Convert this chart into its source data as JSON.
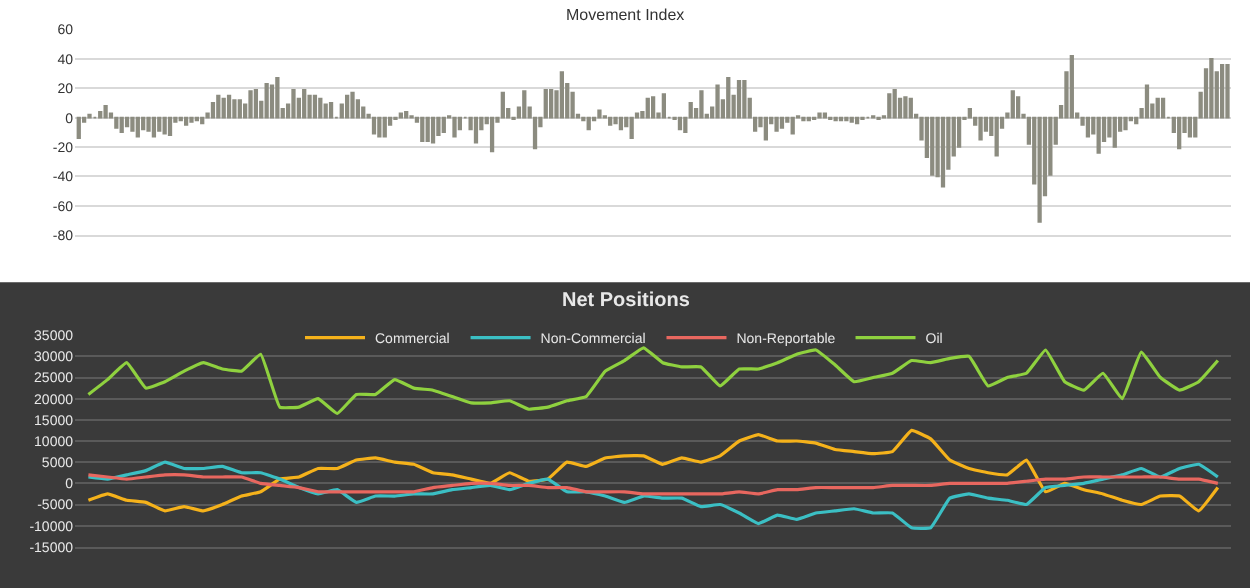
{
  "chart_data": [
    {
      "type": "bar",
      "title": "Movement Index",
      "categories": [
        null,
        null,
        null,
        null,
        null,
        null,
        null,
        null,
        null,
        null,
        null,
        null,
        null,
        null,
        null,
        null,
        null,
        null,
        null,
        null,
        null,
        null,
        null,
        null,
        null,
        null,
        null,
        null,
        null,
        null,
        null,
        null,
        null,
        null,
        null,
        null,
        null,
        null,
        null,
        null,
        null,
        null,
        null,
        null,
        null,
        null,
        null,
        null,
        null,
        null,
        null,
        null,
        null,
        null,
        null,
        null,
        null,
        null,
        null,
        null,
        null,
        null,
        null,
        null,
        null,
        null,
        null,
        null,
        null,
        null,
        null,
        null,
        null,
        null,
        null,
        null,
        null,
        null,
        null,
        null,
        null,
        null,
        null,
        null,
        null,
        null,
        null,
        null,
        null,
        null,
        null,
        null,
        null,
        null,
        null,
        null,
        null,
        null,
        null,
        null,
        null,
        null,
        null,
        null,
        null,
        null,
        null,
        null,
        null,
        null,
        null,
        null,
        null,
        null,
        null,
        null,
        null,
        null,
        null,
        null,
        null,
        null,
        null,
        null,
        null,
        null,
        null,
        null,
        null,
        null,
        null,
        null,
        null,
        null,
        null,
        null,
        null,
        null,
        null,
        null,
        null,
        null,
        null,
        null,
        null,
        null,
        null,
        null,
        null,
        null,
        null,
        null,
        null,
        null,
        null,
        null,
        null,
        null,
        null,
        null,
        null,
        null,
        null,
        null,
        null,
        null,
        null,
        null,
        null,
        null,
        null,
        null,
        null,
        null,
        null,
        null,
        null,
        null,
        null,
        null,
        null,
        null,
        null,
        null,
        null,
        null,
        null,
        null,
        null,
        null,
        null,
        null,
        null,
        null,
        null,
        null,
        null,
        null,
        null,
        null,
        null,
        null,
        null,
        null,
        null,
        null,
        null,
        null,
        null,
        null,
        null,
        null,
        null,
        null,
        null
      ],
      "color": "#8c8c80",
      "ylim": [
        -80,
        60
      ],
      "yticks": [
        -80,
        -60,
        -40,
        -20,
        0,
        20,
        40,
        60
      ],
      "grid": "y",
      "tick_labels": "y",
      "legend": false,
      "values": [
        -14,
        -3,
        2,
        0,
        4,
        8,
        3,
        -7,
        -10,
        -6,
        -9,
        -13,
        -8,
        -9,
        -13,
        -9,
        -11,
        -12,
        -3,
        -2,
        -5,
        -3,
        -2,
        -4,
        3,
        10,
        15,
        13,
        15,
        12,
        12,
        9,
        18,
        19,
        11,
        23,
        22,
        27,
        6,
        9,
        19,
        13,
        19,
        15,
        15,
        13,
        9,
        10,
        0,
        9,
        15,
        17,
        12,
        7,
        2,
        -11,
        -13,
        -13,
        -5,
        -1,
        3,
        4,
        1,
        -3,
        -16,
        -16,
        -17,
        -12,
        -10,
        1,
        -13,
        -8,
        0,
        -8,
        -17,
        -8,
        -4,
        -23,
        -3,
        17,
        6,
        -1,
        7,
        18,
        7,
        -21,
        -6,
        19,
        19,
        18,
        31,
        23,
        17,
        2,
        -2,
        -8,
        -2,
        5,
        1,
        -5,
        -4,
        -8,
        -6,
        -14,
        3,
        4,
        13,
        14,
        3,
        16,
        0,
        -1,
        -8,
        -10,
        10,
        6,
        18,
        2,
        7,
        22,
        12,
        27,
        15,
        25,
        25,
        13,
        -9,
        -6,
        -15,
        -4,
        -9,
        -7,
        -3,
        -11,
        1,
        -2,
        -2,
        -1,
        3,
        3,
        -1,
        -2,
        -2,
        -2,
        -3,
        -4,
        -1,
        0,
        1,
        -1,
        1,
        16,
        19,
        13,
        14,
        13,
        2,
        -15,
        -27,
        -39,
        -40,
        -47,
        -35,
        -26,
        -20,
        -1,
        6,
        -5,
        -15,
        -9,
        -12,
        -26,
        -7,
        3,
        18,
        14,
        2,
        -18,
        -45,
        -71,
        -53,
        -39,
        -18,
        8,
        31,
        42,
        3,
        -5,
        -13,
        -11,
        -24,
        -16,
        -13,
        -20,
        -9,
        -8,
        -2,
        -4,
        6,
        22,
        9,
        13,
        13,
        0,
        -10,
        -21,
        -10,
        -13,
        -13,
        17,
        33,
        40,
        31,
        36,
        36
      ]
    },
    {
      "type": "line",
      "title": "Net Positions",
      "categories": [
        null,
        null,
        null,
        null,
        null,
        null,
        null,
        null,
        null,
        null,
        null,
        null,
        null,
        null,
        null,
        null,
        null,
        null,
        null,
        null,
        null,
        null,
        null,
        null,
        null,
        null,
        null,
        null,
        null,
        null,
        null,
        null,
        null,
        null,
        null,
        null,
        null,
        null,
        null,
        null,
        null,
        null,
        null,
        null,
        null,
        null,
        null,
        null,
        null,
        null,
        null,
        null,
        null,
        null,
        null,
        null,
        null,
        null,
        null,
        null
      ],
      "ylim": [
        -15000,
        35000
      ],
      "yticks": [
        -15000,
        -10000,
        -5000,
        0,
        5000,
        10000,
        15000,
        20000,
        25000,
        30000,
        35000
      ],
      "grid": "y",
      "tick_labels": "y",
      "legend": "top",
      "marker": "none",
      "line_style": "solid",
      "series": [
        {
          "name": "Commercial",
          "color": "#f5b21b",
          "values": [
            -4000,
            -2500,
            -4000,
            -4500,
            -6500,
            -5500,
            -6500,
            -5000,
            -3000,
            -2000,
            1000,
            1500,
            3500,
            3500,
            5500,
            6000,
            5000,
            4500,
            2500,
            2000,
            1000,
            0,
            2500,
            500,
            1000,
            5000,
            4000,
            6000,
            6500,
            6500,
            4500,
            6000,
            5000,
            6500,
            10000,
            11500,
            10000,
            10000,
            9500,
            8000,
            7500,
            7000,
            7500,
            12500,
            10500,
            5500,
            3500,
            2500,
            2000,
            5500,
            -2000,
            0,
            -1500,
            -2500,
            -4000,
            -5000,
            -3000,
            -3000,
            -6500,
            -1000
          ]
        },
        {
          "name": "Non-Commercial",
          "color": "#3bbfc4",
          "values": [
            1500,
            1000,
            2000,
            3000,
            5000,
            3500,
            3500,
            4000,
            2500,
            2500,
            1000,
            -1000,
            -2500,
            -1500,
            -4500,
            -3000,
            -3000,
            -2500,
            -2500,
            -1500,
            -1000,
            -500,
            -1500,
            0,
            1000,
            -2000,
            -2000,
            -3000,
            -4500,
            -3000,
            -3500,
            -3500,
            -5500,
            -5000,
            -7000,
            -9500,
            -7500,
            -8500,
            -7000,
            -6500,
            -6000,
            -7000,
            -7000,
            -10500,
            -10500,
            -3500,
            -2500,
            -3500,
            -4000,
            -5000,
            -1000,
            -500,
            0,
            1000,
            2000,
            3500,
            1500,
            3500,
            4500,
            1500
          ]
        },
        {
          "name": "Non-Reportable",
          "color": "#e8675f",
          "values": [
            2000,
            1500,
            1000,
            1500,
            2000,
            2000,
            1500,
            1500,
            1500,
            0,
            -500,
            -1000,
            -2000,
            -2000,
            -2000,
            -2000,
            -2000,
            -2000,
            -1000,
            -500,
            0,
            0,
            -500,
            -500,
            -1000,
            -1000,
            -2000,
            -2000,
            -2000,
            -2500,
            -2500,
            -2500,
            -2500,
            -2500,
            -2000,
            -2500,
            -1500,
            -1500,
            -1000,
            -1000,
            -1000,
            -1000,
            -500,
            -500,
            -500,
            0,
            0,
            0,
            0,
            500,
            1000,
            1000,
            1500,
            1500,
            1500,
            1500,
            1500,
            1000,
            1000,
            0
          ]
        },
        {
          "name": "Oil",
          "color": "#8fd13f",
          "values": [
            21000,
            24500,
            28500,
            22500,
            24000,
            26500,
            28500,
            27000,
            26500,
            30500,
            18000,
            18000,
            20000,
            16500,
            21000,
            21000,
            24500,
            22500,
            22000,
            20500,
            19000,
            19000,
            19500,
            17500,
            18000,
            19500,
            20500,
            26500,
            29000,
            32000,
            28500,
            27500,
            27500,
            23000,
            27000,
            27000,
            28500,
            30500,
            31500,
            28000,
            24000,
            25000,
            26000,
            29000,
            28500,
            29500,
            30000,
            23000,
            25000,
            26000,
            31500,
            24000,
            22000,
            26000,
            20000,
            31000,
            25000,
            22000,
            24000,
            29000
          ]
        }
      ]
    }
  ]
}
